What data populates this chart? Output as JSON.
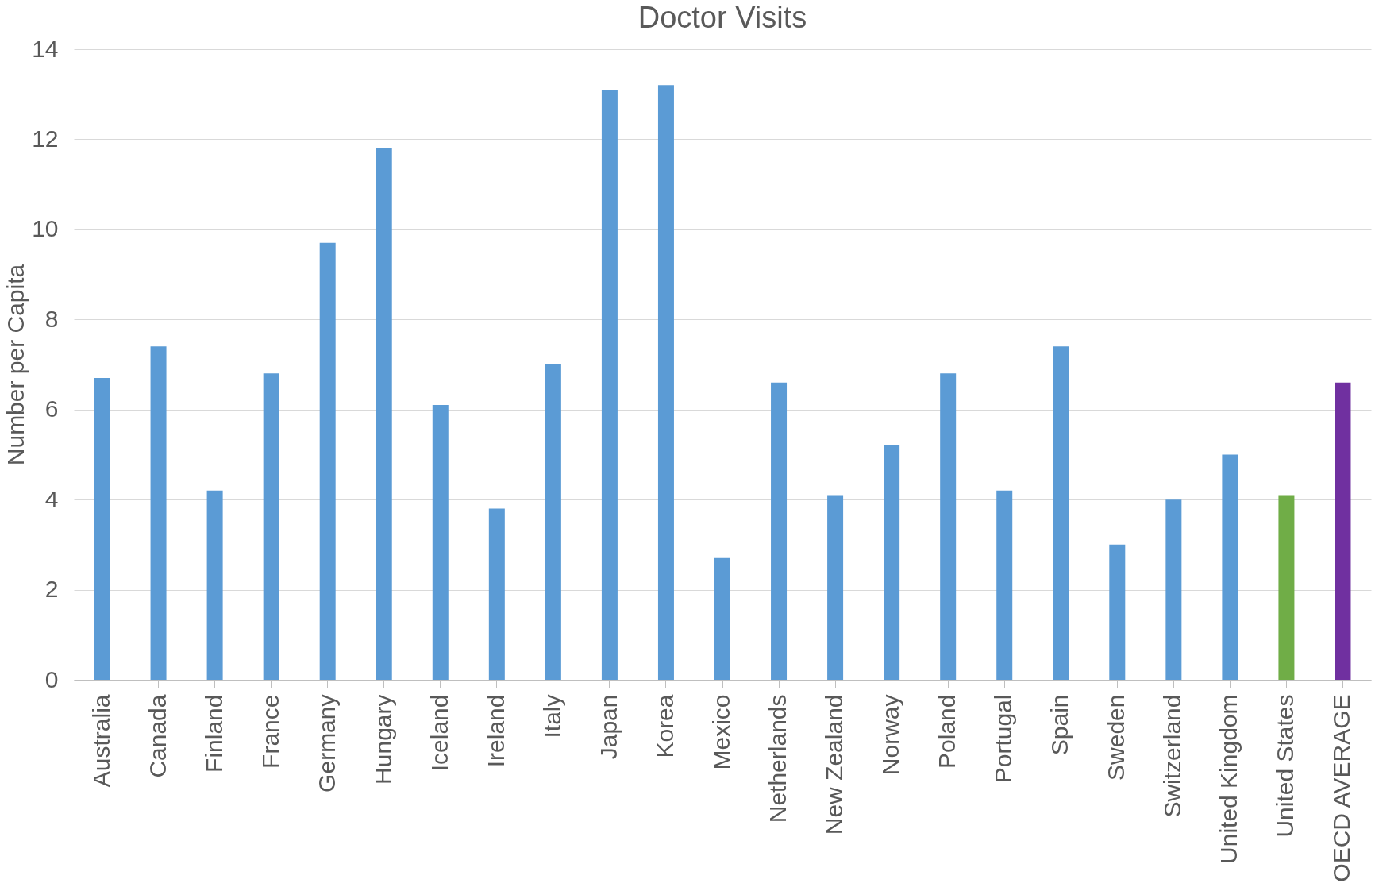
{
  "chart_data": {
    "type": "bar",
    "title": "Doctor Visits",
    "ylabel": "Number per Capita",
    "categories": [
      "Australia",
      "Canada",
      "Finland",
      "France",
      "Germany",
      "Hungary",
      "Iceland",
      "Ireland",
      "Italy",
      "Japan",
      "Korea",
      "Mexico",
      "Netherlands",
      "New Zealand",
      "Norway",
      "Poland",
      "Portugal",
      "Spain",
      "Sweden",
      "Switzerland",
      "United Kingdom",
      "United States",
      "OECD AVERAGE"
    ],
    "values": [
      6.7,
      7.4,
      4.2,
      6.8,
      9.7,
      11.8,
      6.1,
      3.8,
      7.0,
      13.1,
      13.2,
      2.7,
      6.6,
      4.1,
      5.2,
      6.8,
      4.2,
      7.4,
      3.0,
      4.0,
      5.0,
      4.1,
      6.6
    ],
    "colors": [
      "#5b9bd5",
      "#5b9bd5",
      "#5b9bd5",
      "#5b9bd5",
      "#5b9bd5",
      "#5b9bd5",
      "#5b9bd5",
      "#5b9bd5",
      "#5b9bd5",
      "#5b9bd5",
      "#5b9bd5",
      "#5b9bd5",
      "#5b9bd5",
      "#5b9bd5",
      "#5b9bd5",
      "#5b9bd5",
      "#5b9bd5",
      "#5b9bd5",
      "#5b9bd5",
      "#5b9bd5",
      "#5b9bd5",
      "#70ad47",
      "#7030a0"
    ],
    "ylim": [
      0,
      14
    ],
    "yticks": [
      0,
      2,
      4,
      6,
      8,
      10,
      12,
      14
    ],
    "grid": "y"
  }
}
